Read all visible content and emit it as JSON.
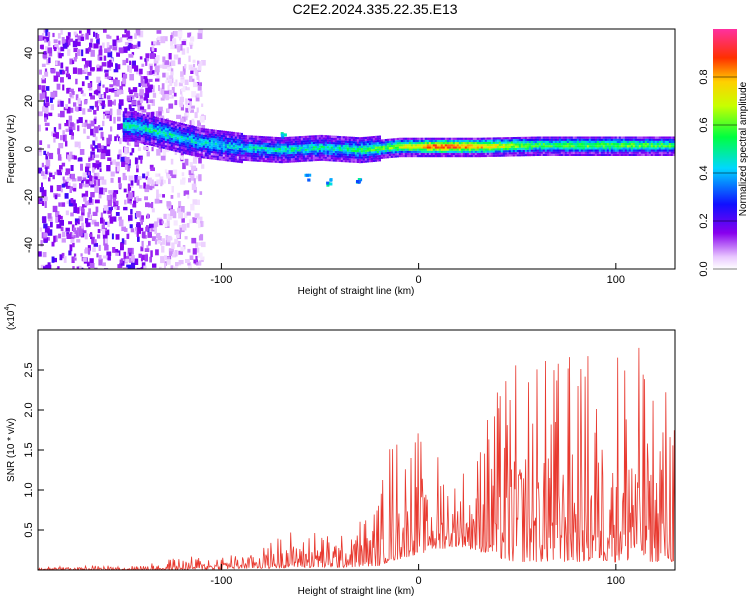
{
  "title": "C2E2.2024.335.22.35.E13",
  "colors": {
    "snr_line": "#e8392f",
    "axis": "#000000",
    "background": "#ffffff"
  },
  "chart_data": [
    {
      "type": "heatmap",
      "title": "C2E2.2024.335.22.35.E13",
      "xlabel": "Height of straight line (km)",
      "ylabel": "Frequency (Hz)",
      "xlim": [
        -193,
        130
      ],
      "ylim": [
        -50,
        50
      ],
      "x_ticks": [
        -100,
        0,
        100
      ],
      "y_ticks": [
        -40,
        -20,
        0,
        20,
        40
      ],
      "grid": false,
      "colorbar": {
        "label": "Normalized spectral amplitude",
        "range": [
          0,
          1
        ],
        "ticks": [
          "0.0",
          "0.2",
          "0.4",
          "0.6",
          "0.8"
        ],
        "colormap": "rainbow (white-violet-blue-cyan-green-yellow-red-magenta)"
      },
      "features": {
        "noise_region_x": [
          -193,
          -135
        ],
        "signal_ridge": [
          {
            "x": -145,
            "freq": 10,
            "amp": 0.5
          },
          {
            "x": -130,
            "freq": 7,
            "amp": 0.5
          },
          {
            "x": -110,
            "freq": 3,
            "amp": 0.45
          },
          {
            "x": -90,
            "freq": 1,
            "amp": 0.45
          },
          {
            "x": -70,
            "freq": 0,
            "amp": 0.5
          },
          {
            "x": -50,
            "freq": 1,
            "amp": 0.5
          },
          {
            "x": -30,
            "freq": 0,
            "amp": 0.55
          },
          {
            "x": -10,
            "freq": 1.5,
            "amp": 0.7
          },
          {
            "x": 10,
            "freq": 1.5,
            "amp": 0.95
          },
          {
            "x": 30,
            "freq": 1.5,
            "amp": 0.85
          },
          {
            "x": 60,
            "freq": 2,
            "amp": 0.6
          },
          {
            "x": 90,
            "freq": 2,
            "amp": 0.65
          },
          {
            "x": 125,
            "freq": 2,
            "amp": 0.6
          }
        ]
      }
    },
    {
      "type": "line",
      "xlabel": "Height of straight line (km)",
      "ylabel": "SNR (10 * v/v)",
      "y_multiplier_label": "(x10",
      "y_multiplier_exp": "4",
      "y_multiplier_close": ")",
      "xlim": [
        -193,
        130
      ],
      "ylim": [
        0,
        30000
      ],
      "x_ticks": [
        -100,
        0,
        100
      ],
      "y_tick_labels": [
        "0.5",
        "1.0",
        "1.5",
        "2.0",
        "2.5"
      ],
      "y_tick_values": [
        5000,
        10000,
        15000,
        20000,
        25000
      ],
      "grid": false,
      "series": [
        {
          "color": "#e8392f",
          "envelope": [
            {
              "x": -193,
              "lo": 0,
              "hi": 500
            },
            {
              "x": -140,
              "lo": 0,
              "hi": 700
            },
            {
              "x": -125,
              "lo": 0,
              "hi": 1500
            },
            {
              "x": -100,
              "lo": 100,
              "hi": 2000
            },
            {
              "x": -80,
              "lo": 200,
              "hi": 3500
            },
            {
              "x": -60,
              "lo": 300,
              "hi": 5500
            },
            {
              "x": -40,
              "lo": 300,
              "hi": 4500
            },
            {
              "x": -20,
              "lo": 500,
              "hi": 9000
            },
            {
              "x": -15,
              "lo": 1000,
              "hi": 17000
            },
            {
              "x": 0,
              "lo": 2000,
              "hi": 18000
            },
            {
              "x": 20,
              "lo": 3000,
              "hi": 12000
            },
            {
              "x": 35,
              "lo": 2000,
              "hi": 20000
            },
            {
              "x": 45,
              "lo": 1000,
              "hi": 25500
            },
            {
              "x": 65,
              "lo": 1000,
              "hi": 27000
            },
            {
              "x": 90,
              "lo": 1000,
              "hi": 28000
            },
            {
              "x": 105,
              "lo": 1000,
              "hi": 30000
            },
            {
              "x": 120,
              "lo": 1000,
              "hi": 26000
            },
            {
              "x": 130,
              "lo": 1000,
              "hi": 23000
            }
          ]
        }
      ]
    }
  ]
}
